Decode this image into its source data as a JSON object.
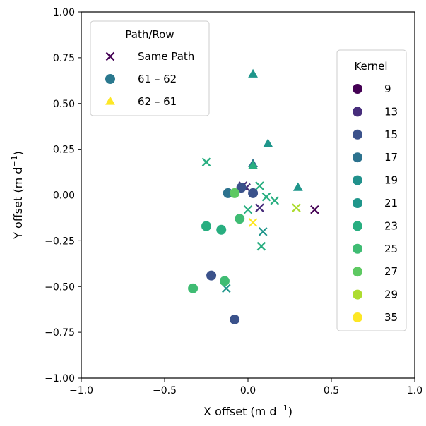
{
  "chart_data": {
    "type": "scatter",
    "xlabel": "X offset (m d",
    "ylabel": "Y offset (m d",
    "unit_exponent": "−1",
    "xlim": [
      -1.0,
      1.0
    ],
    "ylim": [
      -1.0,
      1.0
    ],
    "xticks": [
      -1.0,
      -0.5,
      0.0,
      0.5,
      1.0
    ],
    "xtick_labels": [
      "−1.0",
      "−0.5",
      "0.0",
      "0.5",
      "1.0"
    ],
    "yticks": [
      -1.0,
      -0.75,
      -0.5,
      -0.25,
      0.0,
      0.25,
      0.5,
      0.75,
      1.0
    ],
    "ytick_labels": [
      "−1.00",
      "−0.75",
      "−0.50",
      "−0.25",
      "0.00",
      "0.25",
      "0.50",
      "0.75",
      "1.00"
    ],
    "grid": false,
    "marker_legend": {
      "title": "Path/Row",
      "placement": "upper-left",
      "entries": [
        {
          "label": "Same Path",
          "marker": "x",
          "color": "#440154"
        },
        {
          "label": "61 – 62",
          "marker": "circle",
          "color": "#2a788e"
        },
        {
          "label": "62 – 61",
          "marker": "triangle",
          "color": "#fde725"
        }
      ]
    },
    "color_legend": {
      "title": "Kernel",
      "placement": "right",
      "entries": [
        {
          "label": "9",
          "color": "#440154"
        },
        {
          "label": "13",
          "color": "#472d7b"
        },
        {
          "label": "15",
          "color": "#3b528b"
        },
        {
          "label": "17",
          "color": "#2c728e"
        },
        {
          "label": "19",
          "color": "#21918c"
        },
        {
          "label": "21",
          "color": "#1f968b"
        },
        {
          "label": "23",
          "color": "#28ae80"
        },
        {
          "label": "25",
          "color": "#3fbc73"
        },
        {
          "label": "27",
          "color": "#5ec962"
        },
        {
          "label": "29",
          "color": "#addc30"
        },
        {
          "label": "35",
          "color": "#fde725"
        }
      ]
    },
    "points": [
      {
        "x": 0.03,
        "y": 0.66,
        "marker": "triangle",
        "kernel": "21"
      },
      {
        "x": 0.12,
        "y": 0.28,
        "marker": "triangle",
        "kernel": "21"
      },
      {
        "x": 0.03,
        "y": 0.17,
        "marker": "triangle",
        "kernel": "17"
      },
      {
        "x": 0.03,
        "y": 0.16,
        "marker": "triangle",
        "kernel": "23"
      },
      {
        "x": 0.3,
        "y": 0.04,
        "marker": "triangle",
        "kernel": "21"
      },
      {
        "x": -0.25,
        "y": 0.18,
        "marker": "x",
        "kernel": "23"
      },
      {
        "x": -0.03,
        "y": 0.05,
        "marker": "x",
        "kernel": "13"
      },
      {
        "x": -0.01,
        "y": 0.04,
        "marker": "x",
        "kernel": "13"
      },
      {
        "x": 0.07,
        "y": 0.05,
        "marker": "x",
        "kernel": "23"
      },
      {
        "x": 0.11,
        "y": -0.01,
        "marker": "x",
        "kernel": "23"
      },
      {
        "x": 0.16,
        "y": -0.03,
        "marker": "x",
        "kernel": "23"
      },
      {
        "x": 0.07,
        "y": -0.07,
        "marker": "x",
        "kernel": "13"
      },
      {
        "x": 0.0,
        "y": -0.08,
        "marker": "x",
        "kernel": "23"
      },
      {
        "x": 0.29,
        "y": -0.07,
        "marker": "x",
        "kernel": "29"
      },
      {
        "x": 0.4,
        "y": -0.08,
        "marker": "x",
        "kernel": "9"
      },
      {
        "x": 0.09,
        "y": -0.2,
        "marker": "x",
        "kernel": "21"
      },
      {
        "x": 0.08,
        "y": -0.28,
        "marker": "x",
        "kernel": "23"
      },
      {
        "x": -0.13,
        "y": -0.51,
        "marker": "x",
        "kernel": "21"
      },
      {
        "x": -0.04,
        "y": 0.04,
        "marker": "circle",
        "kernel": "15"
      },
      {
        "x": -0.12,
        "y": 0.01,
        "marker": "circle",
        "kernel": "17"
      },
      {
        "x": -0.08,
        "y": 0.01,
        "marker": "circle",
        "kernel": "27"
      },
      {
        "x": 0.03,
        "y": 0.01,
        "marker": "circle",
        "kernel": "15"
      },
      {
        "x": -0.05,
        "y": -0.13,
        "marker": "circle",
        "kernel": "25"
      },
      {
        "x": -0.25,
        "y": -0.17,
        "marker": "circle",
        "kernel": "23"
      },
      {
        "x": -0.16,
        "y": -0.19,
        "marker": "circle",
        "kernel": "23"
      },
      {
        "x": -0.22,
        "y": -0.44,
        "marker": "circle",
        "kernel": "15"
      },
      {
        "x": -0.14,
        "y": -0.47,
        "marker": "circle",
        "kernel": "25"
      },
      {
        "x": -0.33,
        "y": -0.51,
        "marker": "circle",
        "kernel": "25"
      },
      {
        "x": -0.08,
        "y": -0.68,
        "marker": "circle",
        "kernel": "15"
      },
      {
        "x": 0.03,
        "y": -0.15,
        "marker": "x",
        "kernel": "35"
      }
    ]
  }
}
